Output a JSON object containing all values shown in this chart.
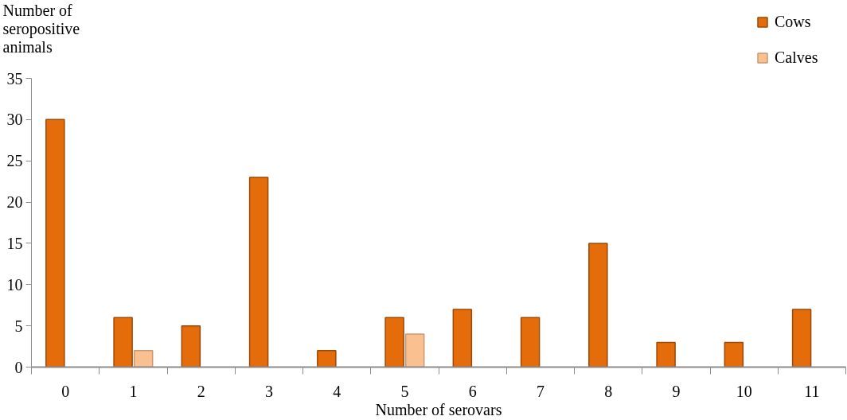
{
  "chart_data": {
    "type": "bar",
    "xlabel": "Number of serovars",
    "ylabel": "Number of seropositive animals",
    "categories": [
      "0",
      "1",
      "2",
      "3",
      "4",
      "5",
      "6",
      "7",
      "8",
      "9",
      "10",
      "11"
    ],
    "series": [
      {
        "name": "Cows",
        "color": "#e46c0a",
        "values": [
          30,
          6,
          5,
          23,
          2,
          6,
          7,
          6,
          15,
          3,
          3,
          7
        ]
      },
      {
        "name": "Calves",
        "color": "#fac090",
        "values": [
          null,
          2,
          null,
          null,
          null,
          4,
          null,
          null,
          null,
          null,
          null,
          null
        ]
      }
    ],
    "ylim": [
      0,
      35
    ],
    "yticks": [
      0,
      5,
      10,
      15,
      20,
      25,
      30,
      35
    ],
    "grid": false,
    "legend": "top right"
  }
}
